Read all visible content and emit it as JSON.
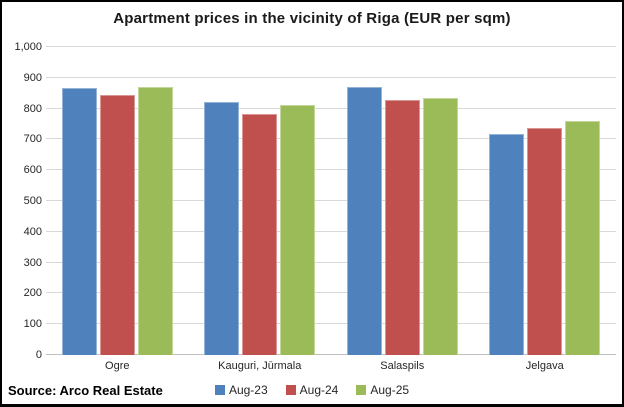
{
  "title": "Apartment prices in the vicinity of Riga (EUR per sqm)",
  "source": "Source: Arco Real Estate",
  "chart_data": {
    "type": "bar",
    "title": "Apartment prices in the vicinity of Riga (EUR per sqm)",
    "categories": [
      "Ogre",
      "Kauguri, Jūrmala",
      "Salaspils",
      "Jelgava"
    ],
    "series": [
      {
        "name": "Aug-23",
        "color": "#4f81bd",
        "border_color": "#95b3d7",
        "values": [
          868,
          822,
          870,
          716
        ]
      },
      {
        "name": "Aug-24",
        "color": "#c0504d",
        "border_color": "#d99694",
        "values": [
          845,
          781,
          827,
          737
        ]
      },
      {
        "name": "Aug-25",
        "color": "#9bbb59",
        "border_color": "#c3d69b",
        "values": [
          871,
          812,
          835,
          760
        ]
      }
    ],
    "xlabel": "",
    "ylabel": "",
    "ylim": [
      0,
      1000
    ],
    "y_ticks": [
      0,
      100,
      200,
      300,
      400,
      500,
      600,
      700,
      800,
      900,
      1000
    ],
    "y_tick_labels": [
      "0",
      "100",
      "200",
      "300",
      "400",
      "500",
      "600",
      "700",
      "800",
      "900",
      "1,000"
    ],
    "grid": true,
    "legend_position": "bottom",
    "annotation": "Source: Arco Real Estate"
  }
}
